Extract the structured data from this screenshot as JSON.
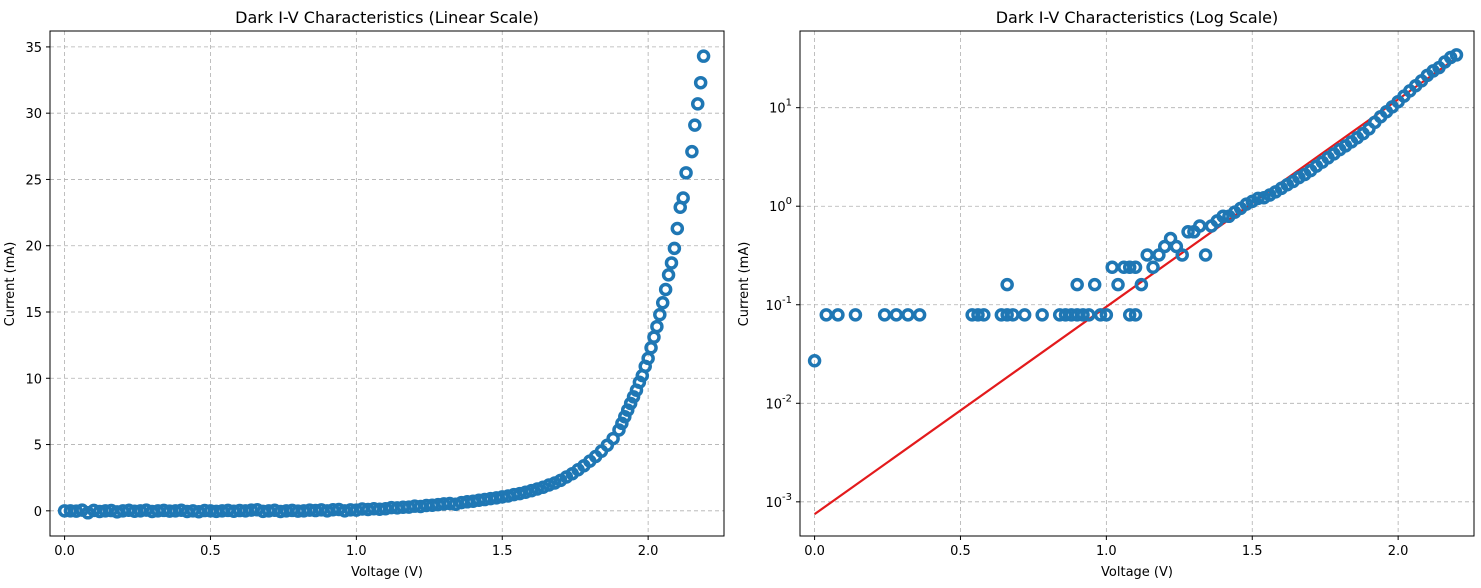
{
  "colors": {
    "marker": "#1f77b4",
    "fit": "#e31a1c"
  },
  "chart_data": [
    {
      "type": "scatter",
      "title": "Dark I-V Characteristics (Linear Scale)",
      "xlabel": "Voltage (V)",
      "ylabel": "Current (mA)",
      "xlim": [
        -0.05,
        2.26
      ],
      "ylim": [
        -1.9,
        36.2
      ],
      "xticks": [
        0,
        0.5,
        1.0,
        1.5,
        2.0
      ],
      "xtick_labels": [
        "0.0",
        "0.5",
        "1.0",
        "1.5",
        "2.0"
      ],
      "yticks": [
        0,
        5,
        10,
        15,
        20,
        25,
        30,
        35
      ],
      "ytick_labels": [
        "0",
        "5",
        "10",
        "15",
        "20",
        "25",
        "30",
        "35"
      ],
      "grid": true,
      "series": [
        {
          "marker": "open-circle",
          "points": [
            [
              0.0,
              0.0
            ],
            [
              0.02,
              0.0
            ],
            [
              0.04,
              -0.02
            ],
            [
              0.06,
              0.05
            ],
            [
              0.08,
              -0.15
            ],
            [
              0.1,
              0.03
            ],
            [
              0.12,
              -0.05
            ],
            [
              0.14,
              0.0
            ],
            [
              0.16,
              0.02
            ],
            [
              0.18,
              -0.08
            ],
            [
              0.2,
              0.0
            ],
            [
              0.22,
              0.04
            ],
            [
              0.24,
              -0.03
            ],
            [
              0.26,
              0.0
            ],
            [
              0.28,
              0.05
            ],
            [
              0.3,
              -0.05
            ],
            [
              0.32,
              0.0
            ],
            [
              0.34,
              0.03
            ],
            [
              0.36,
              -0.02
            ],
            [
              0.38,
              0.0
            ],
            [
              0.4,
              0.04
            ],
            [
              0.42,
              -0.05
            ],
            [
              0.44,
              0.0
            ],
            [
              0.46,
              -0.07
            ],
            [
              0.48,
              0.02
            ],
            [
              0.5,
              0.0
            ],
            [
              0.52,
              -0.04
            ],
            [
              0.54,
              0.0
            ],
            [
              0.56,
              0.03
            ],
            [
              0.58,
              -0.03
            ],
            [
              0.6,
              0.02
            ],
            [
              0.62,
              0.0
            ],
            [
              0.64,
              0.05
            ],
            [
              0.66,
              0.08
            ],
            [
              0.68,
              -0.04
            ],
            [
              0.7,
              0.0
            ],
            [
              0.72,
              0.04
            ],
            [
              0.74,
              -0.05
            ],
            [
              0.76,
              0.0
            ],
            [
              0.78,
              0.03
            ],
            [
              0.8,
              -0.02
            ],
            [
              0.82,
              0.0
            ],
            [
              0.84,
              0.05
            ],
            [
              0.86,
              0.02
            ],
            [
              0.88,
              0.07
            ],
            [
              0.9,
              0.0
            ],
            [
              0.92,
              0.08
            ],
            [
              0.94,
              0.1
            ],
            [
              0.96,
              0.0
            ],
            [
              0.98,
              0.07
            ],
            [
              1.0,
              0.05
            ],
            [
              1.02,
              0.14
            ],
            [
              1.04,
              0.1
            ],
            [
              1.06,
              0.16
            ],
            [
              1.08,
              0.12
            ],
            [
              1.1,
              0.16
            ],
            [
              1.12,
              0.24
            ],
            [
              1.14,
              0.22
            ],
            [
              1.16,
              0.27
            ],
            [
              1.18,
              0.28
            ],
            [
              1.2,
              0.35
            ],
            [
              1.22,
              0.33
            ],
            [
              1.24,
              0.4
            ],
            [
              1.26,
              0.42
            ],
            [
              1.28,
              0.47
            ],
            [
              1.3,
              0.52
            ],
            [
              1.32,
              0.55
            ],
            [
              1.34,
              0.5
            ],
            [
              1.36,
              0.62
            ],
            [
              1.38,
              0.68
            ],
            [
              1.4,
              0.72
            ],
            [
              1.42,
              0.8
            ],
            [
              1.44,
              0.85
            ],
            [
              1.46,
              0.92
            ],
            [
              1.48,
              0.98
            ],
            [
              1.5,
              1.05
            ],
            [
              1.52,
              1.12
            ],
            [
              1.54,
              1.22
            ],
            [
              1.56,
              1.3
            ],
            [
              1.58,
              1.4
            ],
            [
              1.6,
              1.52
            ],
            [
              1.62,
              1.65
            ],
            [
              1.64,
              1.78
            ],
            [
              1.66,
              1.95
            ],
            [
              1.68,
              2.1
            ],
            [
              1.7,
              2.3
            ],
            [
              1.72,
              2.55
            ],
            [
              1.74,
              2.8
            ],
            [
              1.76,
              3.1
            ],
            [
              1.78,
              3.4
            ],
            [
              1.8,
              3.75
            ],
            [
              1.82,
              4.1
            ],
            [
              1.84,
              4.5
            ],
            [
              1.86,
              4.95
            ],
            [
              1.88,
              5.45
            ],
            [
              1.9,
              6.1
            ],
            [
              1.91,
              6.6
            ],
            [
              1.92,
              7.1
            ],
            [
              1.93,
              7.6
            ],
            [
              1.94,
              8.1
            ],
            [
              1.95,
              8.6
            ],
            [
              1.96,
              9.1
            ],
            [
              1.97,
              9.7
            ],
            [
              1.98,
              10.2
            ],
            [
              1.99,
              10.9
            ],
            [
              2.0,
              11.5
            ],
            [
              2.01,
              12.3
            ],
            [
              2.02,
              13.1
            ],
            [
              2.03,
              13.9
            ],
            [
              2.04,
              14.8
            ],
            [
              2.05,
              15.7
            ],
            [
              2.06,
              16.7
            ],
            [
              2.07,
              17.8
            ],
            [
              2.08,
              18.7
            ],
            [
              2.09,
              19.8
            ],
            [
              2.1,
              21.3
            ],
            [
              2.11,
              22.9
            ],
            [
              2.12,
              23.6
            ],
            [
              2.13,
              25.5
            ],
            [
              2.15,
              27.1
            ],
            [
              2.16,
              29.1
            ],
            [
              2.17,
              30.7
            ],
            [
              2.18,
              32.3
            ],
            [
              2.19,
              34.3
            ]
          ]
        }
      ]
    },
    {
      "type": "scatter",
      "title": "Dark I-V Characteristics (Log Scale)",
      "xlabel": "Voltage (V)",
      "ylabel": "Current (mA)",
      "yscale": "log",
      "xlim": [
        -0.05,
        2.26
      ],
      "ylim": [
        0.00045,
        60
      ],
      "xticks": [
        0,
        0.5,
        1.0,
        1.5,
        2.0
      ],
      "xtick_labels": [
        "0.0",
        "0.5",
        "1.0",
        "1.5",
        "2.0"
      ],
      "yticks": [
        0.001,
        0.01,
        0.1,
        1,
        10
      ],
      "ytick_labels": [
        [
          "10",
          "-3"
        ],
        [
          "10",
          "-2"
        ],
        [
          "10",
          "-1"
        ],
        [
          "10",
          "0"
        ],
        [
          "10",
          "1"
        ]
      ],
      "grid": true,
      "series": [
        {
          "marker": "open-circle",
          "points": [
            [
              0.0,
              0.027
            ],
            [
              0.04,
              0.079
            ],
            [
              0.08,
              0.079
            ],
            [
              0.14,
              0.079
            ],
            [
              0.24,
              0.079
            ],
            [
              0.28,
              0.079
            ],
            [
              0.32,
              0.079
            ],
            [
              0.36,
              0.079
            ],
            [
              0.54,
              0.079
            ],
            [
              0.58,
              0.079
            ],
            [
              0.64,
              0.079
            ],
            [
              0.66,
              0.16
            ],
            [
              0.68,
              0.079
            ],
            [
              0.72,
              0.079
            ],
            [
              0.78,
              0.079
            ],
            [
              0.84,
              0.079
            ],
            [
              0.86,
              0.079
            ],
            [
              0.88,
              0.079
            ],
            [
              0.9,
              0.079
            ],
            [
              0.92,
              0.079
            ],
            [
              0.9,
              0.16
            ],
            [
              0.94,
              0.079
            ],
            [
              0.96,
              0.16
            ],
            [
              0.98,
              0.079
            ],
            [
              1.0,
              0.079
            ],
            [
              1.02,
              0.24
            ],
            [
              1.04,
              0.16
            ],
            [
              1.06,
              0.24
            ],
            [
              1.08,
              0.24
            ],
            [
              1.1,
              0.24
            ],
            [
              1.12,
              0.16
            ],
            [
              1.14,
              0.32
            ],
            [
              1.16,
              0.24
            ],
            [
              1.18,
              0.32
            ],
            [
              1.2,
              0.39
            ],
            [
              1.22,
              0.47
            ],
            [
              1.24,
              0.39
            ],
            [
              1.26,
              0.32
            ],
            [
              1.28,
              0.55
            ],
            [
              1.3,
              0.55
            ],
            [
              1.32,
              0.63
            ],
            [
              1.34,
              0.32
            ],
            [
              1.36,
              0.63
            ],
            [
              1.38,
              0.71
            ],
            [
              1.4,
              0.79
            ],
            [
              1.42,
              0.79
            ],
            [
              1.44,
              0.87
            ],
            [
              1.46,
              0.95
            ],
            [
              1.48,
              1.05
            ],
            [
              1.5,
              1.12
            ],
            [
              1.52,
              1.2
            ],
            [
              1.54,
              1.22
            ],
            [
              1.56,
              1.3
            ],
            [
              1.58,
              1.4
            ],
            [
              1.6,
              1.52
            ],
            [
              1.62,
              1.65
            ],
            [
              1.64,
              1.78
            ],
            [
              1.66,
              1.95
            ],
            [
              1.68,
              2.1
            ],
            [
              1.7,
              2.3
            ],
            [
              1.72,
              2.55
            ],
            [
              1.74,
              2.8
            ],
            [
              1.76,
              3.1
            ],
            [
              1.78,
              3.4
            ],
            [
              1.8,
              3.75
            ],
            [
              1.82,
              4.1
            ],
            [
              1.84,
              4.5
            ],
            [
              1.86,
              4.95
            ],
            [
              1.88,
              5.45
            ],
            [
              1.9,
              6.1
            ],
            [
              1.92,
              7.1
            ],
            [
              1.94,
              8.1
            ],
            [
              1.96,
              9.1
            ],
            [
              1.98,
              10.2
            ],
            [
              2.0,
              11.5
            ],
            [
              2.02,
              13.1
            ],
            [
              2.04,
              14.8
            ],
            [
              2.06,
              16.7
            ],
            [
              2.08,
              18.7
            ],
            [
              2.1,
              21.3
            ],
            [
              2.12,
              23.6
            ],
            [
              2.14,
              25.5
            ],
            [
              2.16,
              29.1
            ],
            [
              2.18,
              32.3
            ],
            [
              2.2,
              34.3
            ],
            [
              1.1,
              0.079
            ],
            [
              1.08,
              0.079
            ],
            [
              0.56,
              0.079
            ],
            [
              0.66,
              0.079
            ]
          ]
        },
        {
          "marker": "line",
          "points": [
            [
              0.0,
              0.00075
            ],
            [
              2.2,
              32.0
            ]
          ]
        }
      ]
    }
  ]
}
